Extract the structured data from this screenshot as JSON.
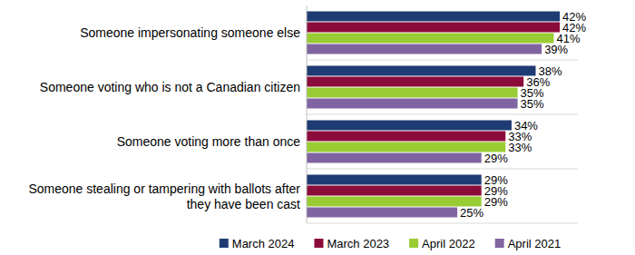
{
  "chart_data": {
    "type": "bar",
    "orientation": "horizontal",
    "data_labels": true,
    "tick_labels": "y",
    "legend": "bottom",
    "categories": [
      "Someone impersonating someone else",
      "Someone voting who is not a Canadian citizen",
      "Someone voting more than once",
      "Someone stealing or tampering with ballots after they have been cast"
    ],
    "xlim": [
      0,
      45
    ],
    "series": [
      {
        "name": "March 2024",
        "color": "#1f3b73",
        "values": [
          42,
          38,
          34,
          29
        ],
        "value_labels": [
          "42%",
          "38%",
          "34%",
          "29%"
        ]
      },
      {
        "name": "March 2023",
        "color": "#8b0b3b",
        "values": [
          42,
          36,
          33,
          29
        ],
        "value_labels": [
          "42%",
          "36%",
          "33%",
          "29%"
        ]
      },
      {
        "name": "April 2022",
        "color": "#99cc33",
        "values": [
          41,
          35,
          33,
          29
        ],
        "value_labels": [
          "41%",
          "35%",
          "33%",
          "29%"
        ]
      },
      {
        "name": "April 2021",
        "color": "#8064a2",
        "values": [
          39,
          35,
          29,
          25
        ],
        "value_labels": [
          "39%",
          "35%",
          "29%",
          "25%"
        ]
      }
    ]
  }
}
